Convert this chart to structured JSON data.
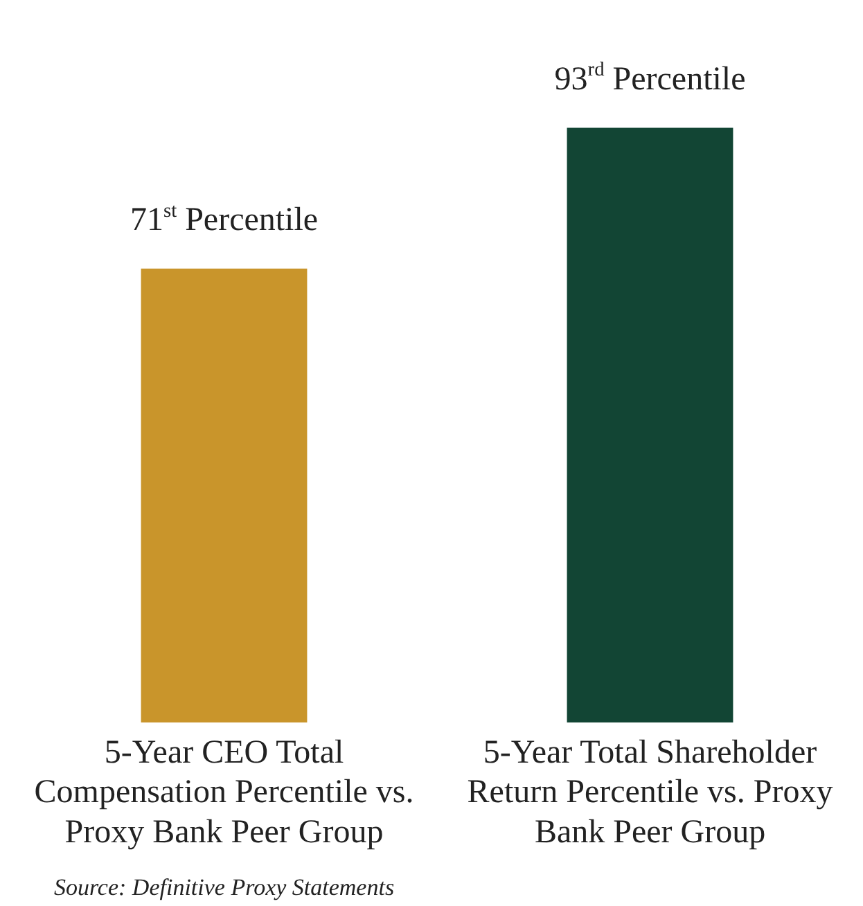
{
  "chart_data": {
    "type": "bar",
    "categories": [
      "5-Year CEO Total Compensation Percentile vs. Proxy Bank Peer Group",
      "5-Year Total Shareholder Return Percentile vs. Proxy Bank Peer Group"
    ],
    "values": [
      71,
      93
    ],
    "colors": [
      "#c9952b",
      "#124534"
    ],
    "value_labels": [
      "71$^{st}$ Percentile",
      "93$^{rd}$ Percentile"
    ],
    "annotations": [
      "Source: Definitive Proxy Statements"
    ],
    "grid": false,
    "legend": false
  }
}
